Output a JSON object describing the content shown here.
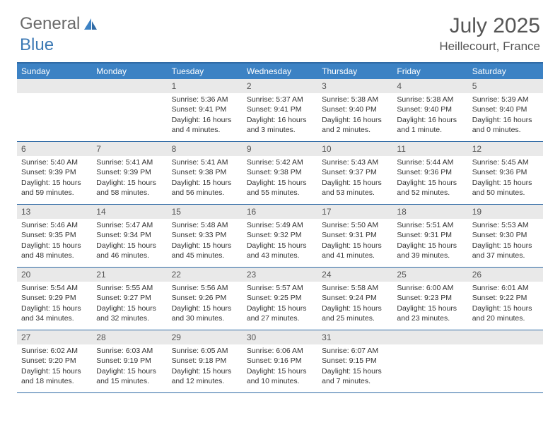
{
  "brand": {
    "part1": "General",
    "part2": "Blue"
  },
  "title": "July 2025",
  "location": "Heillecourt, France",
  "colors": {
    "header_bg": "#3c82c4",
    "border": "#2f6aa5",
    "daynum_bg": "#e9e9e9",
    "text": "#333333",
    "muted": "#555555",
    "white": "#ffffff"
  },
  "weekdays": [
    "Sunday",
    "Monday",
    "Tuesday",
    "Wednesday",
    "Thursday",
    "Friday",
    "Saturday"
  ],
  "weeks": [
    [
      {
        "n": "",
        "l1": "",
        "l2": "",
        "l3": "",
        "l4": ""
      },
      {
        "n": "",
        "l1": "",
        "l2": "",
        "l3": "",
        "l4": ""
      },
      {
        "n": "1",
        "l1": "Sunrise: 5:36 AM",
        "l2": "Sunset: 9:41 PM",
        "l3": "Daylight: 16 hours",
        "l4": "and 4 minutes."
      },
      {
        "n": "2",
        "l1": "Sunrise: 5:37 AM",
        "l2": "Sunset: 9:41 PM",
        "l3": "Daylight: 16 hours",
        "l4": "and 3 minutes."
      },
      {
        "n": "3",
        "l1": "Sunrise: 5:38 AM",
        "l2": "Sunset: 9:40 PM",
        "l3": "Daylight: 16 hours",
        "l4": "and 2 minutes."
      },
      {
        "n": "4",
        "l1": "Sunrise: 5:38 AM",
        "l2": "Sunset: 9:40 PM",
        "l3": "Daylight: 16 hours",
        "l4": "and 1 minute."
      },
      {
        "n": "5",
        "l1": "Sunrise: 5:39 AM",
        "l2": "Sunset: 9:40 PM",
        "l3": "Daylight: 16 hours",
        "l4": "and 0 minutes."
      }
    ],
    [
      {
        "n": "6",
        "l1": "Sunrise: 5:40 AM",
        "l2": "Sunset: 9:39 PM",
        "l3": "Daylight: 15 hours",
        "l4": "and 59 minutes."
      },
      {
        "n": "7",
        "l1": "Sunrise: 5:41 AM",
        "l2": "Sunset: 9:39 PM",
        "l3": "Daylight: 15 hours",
        "l4": "and 58 minutes."
      },
      {
        "n": "8",
        "l1": "Sunrise: 5:41 AM",
        "l2": "Sunset: 9:38 PM",
        "l3": "Daylight: 15 hours",
        "l4": "and 56 minutes."
      },
      {
        "n": "9",
        "l1": "Sunrise: 5:42 AM",
        "l2": "Sunset: 9:38 PM",
        "l3": "Daylight: 15 hours",
        "l4": "and 55 minutes."
      },
      {
        "n": "10",
        "l1": "Sunrise: 5:43 AM",
        "l2": "Sunset: 9:37 PM",
        "l3": "Daylight: 15 hours",
        "l4": "and 53 minutes."
      },
      {
        "n": "11",
        "l1": "Sunrise: 5:44 AM",
        "l2": "Sunset: 9:36 PM",
        "l3": "Daylight: 15 hours",
        "l4": "and 52 minutes."
      },
      {
        "n": "12",
        "l1": "Sunrise: 5:45 AM",
        "l2": "Sunset: 9:36 PM",
        "l3": "Daylight: 15 hours",
        "l4": "and 50 minutes."
      }
    ],
    [
      {
        "n": "13",
        "l1": "Sunrise: 5:46 AM",
        "l2": "Sunset: 9:35 PM",
        "l3": "Daylight: 15 hours",
        "l4": "and 48 minutes."
      },
      {
        "n": "14",
        "l1": "Sunrise: 5:47 AM",
        "l2": "Sunset: 9:34 PM",
        "l3": "Daylight: 15 hours",
        "l4": "and 46 minutes."
      },
      {
        "n": "15",
        "l1": "Sunrise: 5:48 AM",
        "l2": "Sunset: 9:33 PM",
        "l3": "Daylight: 15 hours",
        "l4": "and 45 minutes."
      },
      {
        "n": "16",
        "l1": "Sunrise: 5:49 AM",
        "l2": "Sunset: 9:32 PM",
        "l3": "Daylight: 15 hours",
        "l4": "and 43 minutes."
      },
      {
        "n": "17",
        "l1": "Sunrise: 5:50 AM",
        "l2": "Sunset: 9:31 PM",
        "l3": "Daylight: 15 hours",
        "l4": "and 41 minutes."
      },
      {
        "n": "18",
        "l1": "Sunrise: 5:51 AM",
        "l2": "Sunset: 9:31 PM",
        "l3": "Daylight: 15 hours",
        "l4": "and 39 minutes."
      },
      {
        "n": "19",
        "l1": "Sunrise: 5:53 AM",
        "l2": "Sunset: 9:30 PM",
        "l3": "Daylight: 15 hours",
        "l4": "and 37 minutes."
      }
    ],
    [
      {
        "n": "20",
        "l1": "Sunrise: 5:54 AM",
        "l2": "Sunset: 9:29 PM",
        "l3": "Daylight: 15 hours",
        "l4": "and 34 minutes."
      },
      {
        "n": "21",
        "l1": "Sunrise: 5:55 AM",
        "l2": "Sunset: 9:27 PM",
        "l3": "Daylight: 15 hours",
        "l4": "and 32 minutes."
      },
      {
        "n": "22",
        "l1": "Sunrise: 5:56 AM",
        "l2": "Sunset: 9:26 PM",
        "l3": "Daylight: 15 hours",
        "l4": "and 30 minutes."
      },
      {
        "n": "23",
        "l1": "Sunrise: 5:57 AM",
        "l2": "Sunset: 9:25 PM",
        "l3": "Daylight: 15 hours",
        "l4": "and 27 minutes."
      },
      {
        "n": "24",
        "l1": "Sunrise: 5:58 AM",
        "l2": "Sunset: 9:24 PM",
        "l3": "Daylight: 15 hours",
        "l4": "and 25 minutes."
      },
      {
        "n": "25",
        "l1": "Sunrise: 6:00 AM",
        "l2": "Sunset: 9:23 PM",
        "l3": "Daylight: 15 hours",
        "l4": "and 23 minutes."
      },
      {
        "n": "26",
        "l1": "Sunrise: 6:01 AM",
        "l2": "Sunset: 9:22 PM",
        "l3": "Daylight: 15 hours",
        "l4": "and 20 minutes."
      }
    ],
    [
      {
        "n": "27",
        "l1": "Sunrise: 6:02 AM",
        "l2": "Sunset: 9:20 PM",
        "l3": "Daylight: 15 hours",
        "l4": "and 18 minutes."
      },
      {
        "n": "28",
        "l1": "Sunrise: 6:03 AM",
        "l2": "Sunset: 9:19 PM",
        "l3": "Daylight: 15 hours",
        "l4": "and 15 minutes."
      },
      {
        "n": "29",
        "l1": "Sunrise: 6:05 AM",
        "l2": "Sunset: 9:18 PM",
        "l3": "Daylight: 15 hours",
        "l4": "and 12 minutes."
      },
      {
        "n": "30",
        "l1": "Sunrise: 6:06 AM",
        "l2": "Sunset: 9:16 PM",
        "l3": "Daylight: 15 hours",
        "l4": "and 10 minutes."
      },
      {
        "n": "31",
        "l1": "Sunrise: 6:07 AM",
        "l2": "Sunset: 9:15 PM",
        "l3": "Daylight: 15 hours",
        "l4": "and 7 minutes."
      },
      {
        "n": "",
        "l1": "",
        "l2": "",
        "l3": "",
        "l4": ""
      },
      {
        "n": "",
        "l1": "",
        "l2": "",
        "l3": "",
        "l4": ""
      }
    ]
  ]
}
